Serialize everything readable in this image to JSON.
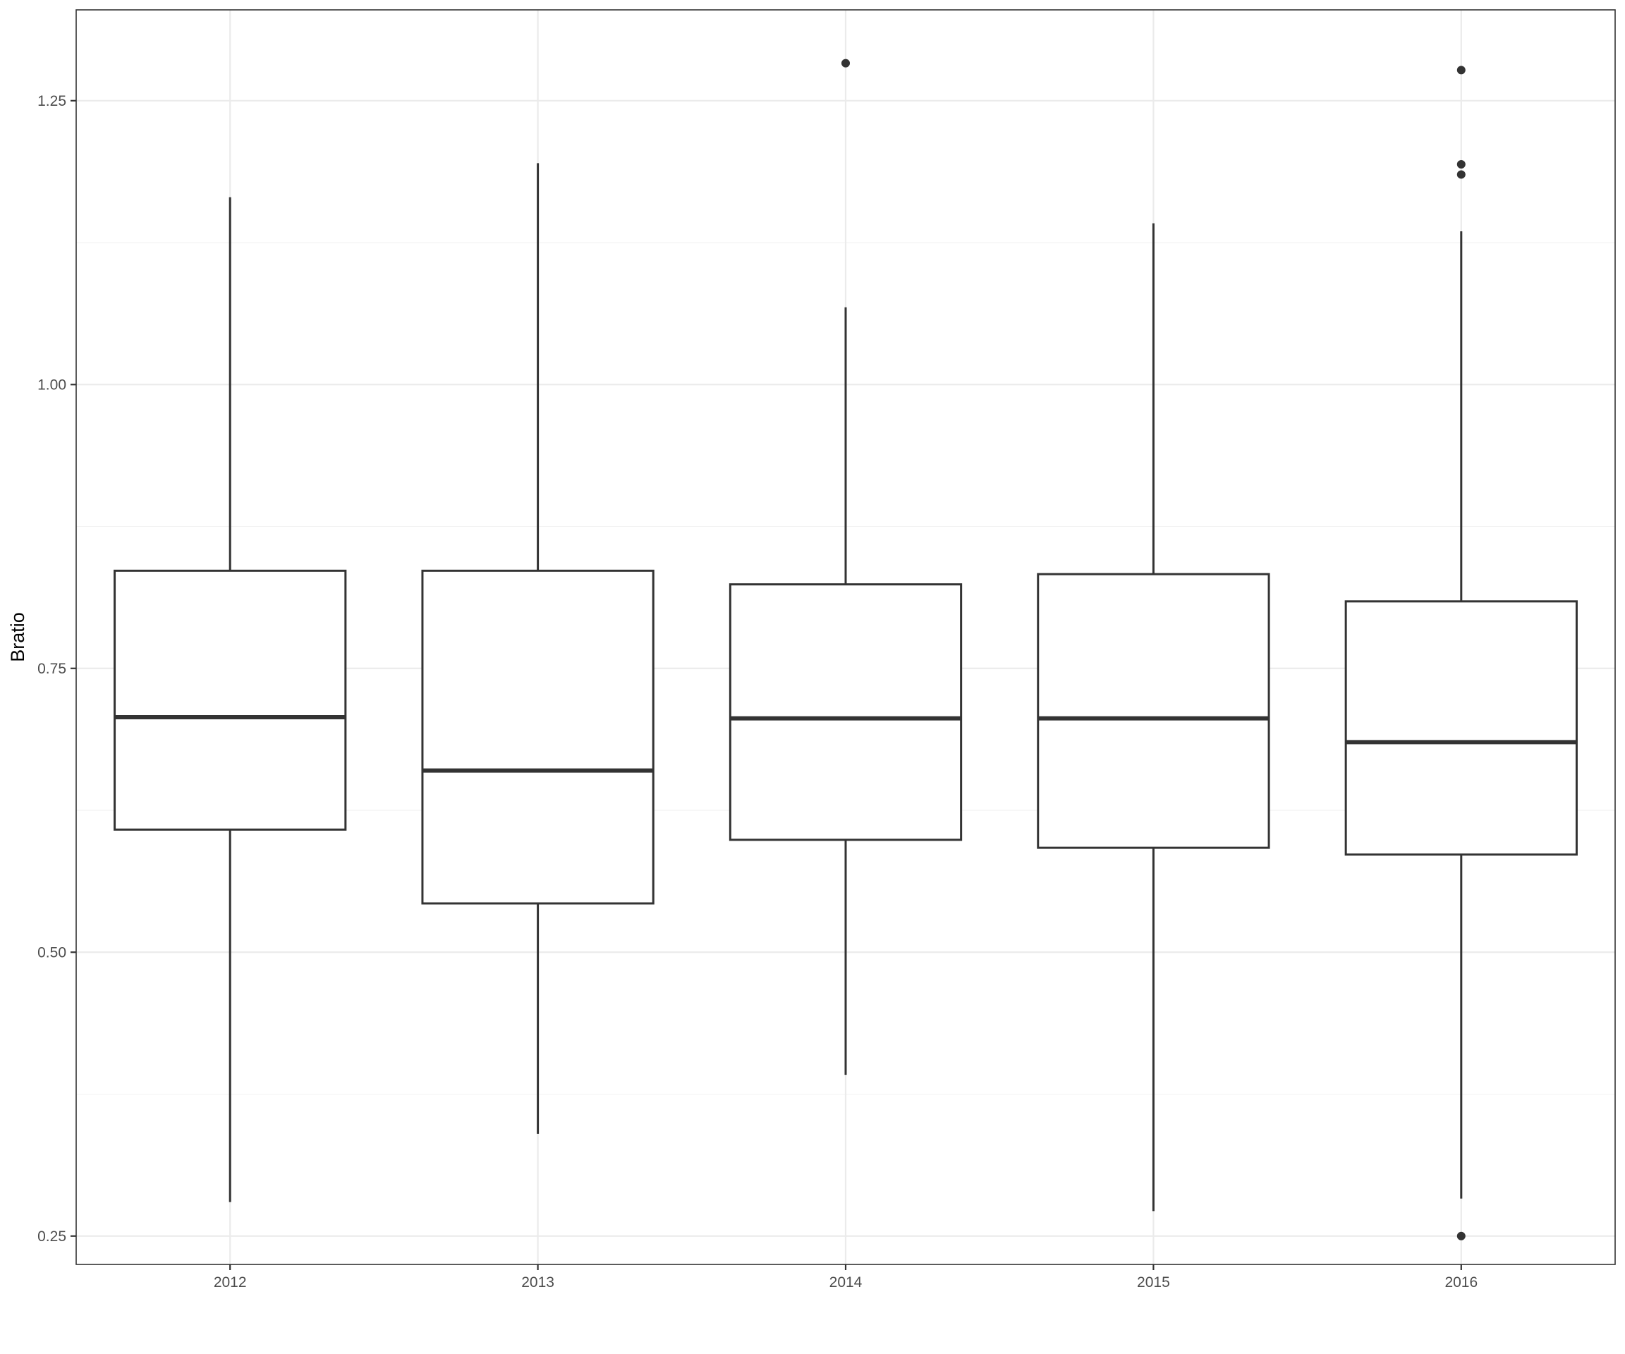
{
  "chart_data": {
    "type": "boxplot",
    "title": "",
    "xlabel": "",
    "ylabel": "Bratio",
    "ylim": [
      0.225,
      1.33
    ],
    "yticks": [
      0.25,
      0.5,
      0.75,
      1.0,
      1.25
    ],
    "ytick_labels": [
      "0.25",
      "0.50",
      "0.75",
      "1.00",
      "1.25"
    ],
    "y_minor_ticks": [
      0.375,
      0.625,
      0.875,
      1.125
    ],
    "grid": true,
    "legend": "none",
    "categories": [
      "2012",
      "2013",
      "2014",
      "2015",
      "2016"
    ],
    "boxes": [
      {
        "category": "2012",
        "whisker_low": 0.28,
        "q1": 0.608,
        "median": 0.707,
        "q3": 0.836,
        "whisker_high": 1.165,
        "outliers": []
      },
      {
        "category": "2013",
        "whisker_low": 0.34,
        "q1": 0.543,
        "median": 0.66,
        "q3": 0.836,
        "whisker_high": 1.195,
        "outliers": []
      },
      {
        "category": "2014",
        "whisker_low": 0.392,
        "q1": 0.599,
        "median": 0.706,
        "q3": 0.824,
        "whisker_high": 1.068,
        "outliers": [
          1.283
        ]
      },
      {
        "category": "2015",
        "whisker_low": 0.272,
        "q1": 0.592,
        "median": 0.706,
        "q3": 0.833,
        "whisker_high": 1.142,
        "outliers": []
      },
      {
        "category": "2016",
        "whisker_low": 0.283,
        "q1": 0.586,
        "median": 0.685,
        "q3": 0.809,
        "whisker_high": 1.135,
        "outliers": [
          1.277,
          1.194,
          1.185,
          0.25
        ]
      }
    ]
  }
}
